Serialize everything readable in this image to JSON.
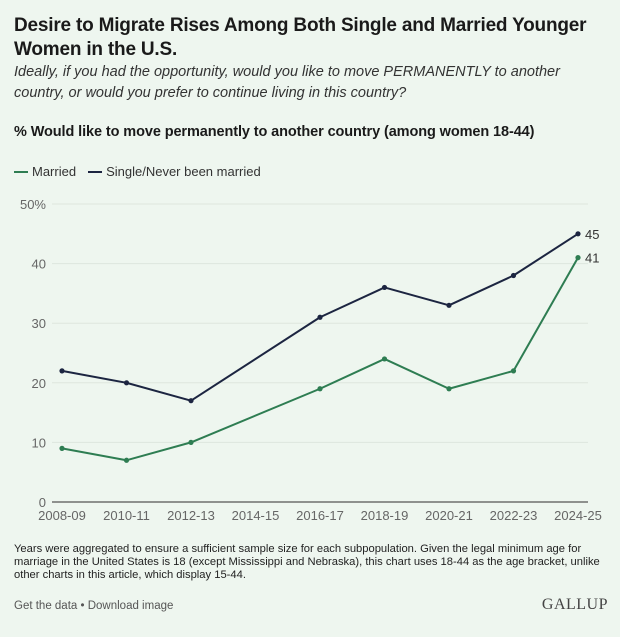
{
  "header": {
    "title": "Desire to Migrate Rises Among Both Single and Married Younger Women in the U.S.",
    "subtitle": "Ideally, if you had the opportunity, would you like to move PERMANENTLY to another country, or would you prefer to continue living in this country?",
    "measure": "% Would like to move permanently to another country (among women 18-44)"
  },
  "legend": [
    {
      "label": "Married",
      "color": "#2e7d52"
    },
    {
      "label": "Single/Never been married",
      "color": "#1c2541"
    }
  ],
  "chart_data": {
    "type": "line",
    "title": "Desire to Migrate Rises Among Both Single and Married Younger Women in the U.S.",
    "xlabel": "",
    "ylabel": "% Would like to move permanently to another country (among women 18-44)",
    "categories": [
      "2008-09",
      "2010-11",
      "2012-13",
      "2014-15",
      "2016-17",
      "2018-19",
      "2020-21",
      "2022-23",
      "2024-25"
    ],
    "series": [
      {
        "name": "Married",
        "color": "#2e7d52",
        "values": [
          9,
          7,
          10,
          null,
          19,
          24,
          19,
          22,
          41
        ]
      },
      {
        "name": "Single/Never been married",
        "color": "#1c2541",
        "values": [
          22,
          20,
          17,
          null,
          31,
          36,
          33,
          38,
          45
        ]
      }
    ],
    "ylim": [
      0,
      50
    ],
    "yticks": [
      0,
      10,
      20,
      30,
      40,
      50
    ],
    "ytick_labels": [
      "0",
      "10",
      "20",
      "30",
      "40",
      "50%"
    ],
    "end_labels": {
      "Married": "41",
      "Single/Never been married": "45"
    },
    "grid": true,
    "legend_position": "top-left"
  },
  "footer": {
    "note": "Years were aggregated to ensure a sufficient sample size for each subpopulation. Given the legal minimum age for marriage in the United States is 18 (except Mississippi and Nebraska), this chart uses 18-44 as the age bracket, unlike other charts in this article, which display 15-44.",
    "get_data": "Get the data",
    "separator": " • ",
    "download": "Download image",
    "brand": "GALLUP"
  }
}
